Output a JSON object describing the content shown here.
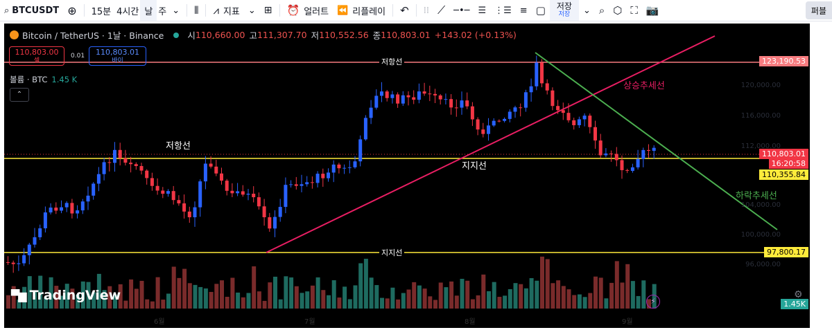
{
  "toolbar": {
    "symbol": "BTCUSDT",
    "intervals": [
      "15분",
      "4시간",
      "날",
      "주"
    ],
    "active_interval": "날",
    "indicators_label": "지표",
    "alert_label": "얼러트",
    "replay_label": "리플레이",
    "save_label": "저장",
    "save_sub": "저장",
    "publish_label": "퍼블"
  },
  "legend": {
    "title": "Bitcoin / TetherUS · 1날 · Binance",
    "open_label": "시",
    "open": "110,660.00",
    "high_label": "고",
    "high": "111,307.70",
    "low_label": "저",
    "low": "110,552.56",
    "close_label": "종",
    "close": "110,803.01",
    "change": "+143.02 (+0.13%)"
  },
  "trade": {
    "sell_price": "110,803.00",
    "sell_label": "셀",
    "spread": "0.01",
    "buy_price": "110,803.01",
    "buy_label": "바이"
  },
  "volume": {
    "label": "볼륨 · BTC",
    "value": "1.45 K"
  },
  "price_tags": {
    "resistance_top": "123,190.53",
    "current": "110,803.01",
    "countdown": "16:20:58",
    "support_mid": "110,355.84",
    "support_low": "97,800.17",
    "volume_tag": "1.45K"
  },
  "annotations": {
    "resistance_top": "저항선",
    "resistance_mid": "저항선",
    "support_mid": "지지선",
    "support_low": "지지선",
    "uptrend": "상승추세선",
    "downtrend": "하락추세선"
  },
  "axis": {
    "x_ticks": [
      "6월",
      "7월",
      "8월",
      "9월"
    ],
    "y_ticks_faint": [
      "120,000.00",
      "116,000.00",
      "112,000.00",
      "104,000.00",
      "100,000.00",
      "96,000.00"
    ]
  },
  "brand": "TradingView",
  "colors": {
    "background": "#000000",
    "up": "#2962ff",
    "down": "#f23645",
    "resistance_line": "#f77c80",
    "support_line": "#ffeb3b",
    "uptrend": "#e91e63",
    "downtrend": "#4caf50",
    "volume_up": "#1e6b60",
    "volume_down": "#7a2b2b"
  }
}
